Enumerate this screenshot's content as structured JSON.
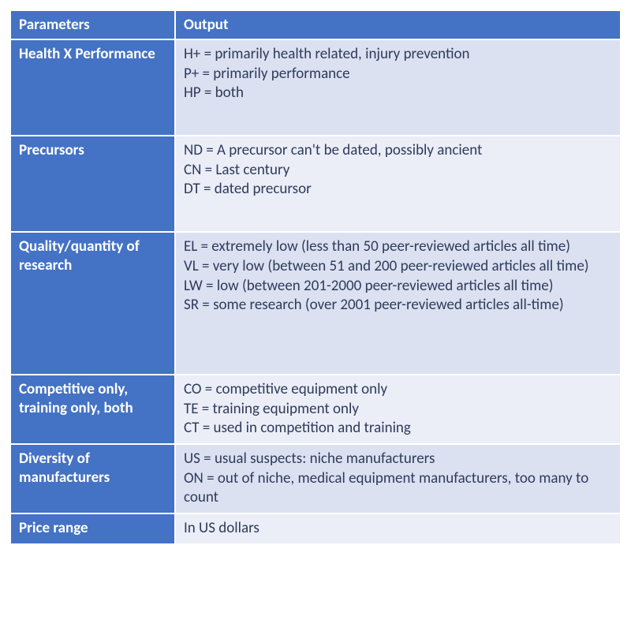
{
  "table": {
    "header_bg": "#4472c4",
    "header_fg": "#ffffff",
    "row_alt_bg_a": "#dbe1f1",
    "row_alt_bg_b": "#ebeef7",
    "body_fg": "#2f3b5c",
    "border_color": "#ffffff",
    "font_family": "Calibri, Arial, sans-serif",
    "header_fontsize": 19,
    "body_fontsize": 19,
    "columns": [
      "Parameters",
      "Output"
    ],
    "col_widths_pct": [
      27,
      73
    ],
    "rows": [
      {
        "parameter": "Health X Performance",
        "lines": [
          "H+ = primarily health related, injury prevention",
          "P+ = primarily performance",
          "HP = both"
        ],
        "extra_blank_lines": 1
      },
      {
        "parameter": "Precursors",
        "lines": [
          "ND = A precursor can't be dated, possibly ancient",
          "CN = Last century",
          "DT = dated precursor"
        ],
        "extra_blank_lines": 1
      },
      {
        "parameter": "Quality/quantity of research",
        "lines": [
          "EL = extremely low (less than 50 peer-reviewed articles all time)",
          "VL = very low (between 51 and 200 peer-reviewed articles all time)",
          "LW = low (between 201-2000 peer-reviewed articles all time)",
          "SR = some research (over 2001 peer-reviewed articles all-time)"
        ],
        "extra_blank_lines": 2
      },
      {
        "parameter": "Competitive only, training only, both",
        "lines": [
          "CO = competitive equipment only",
          "TE = training equipment only",
          "CT = used in competition and training"
        ],
        "extra_blank_lines": 0
      },
      {
        "parameter": "Diversity of manufacturers",
        "lines": [
          "US = usual suspects: niche manufacturers",
          "ON = out of niche, medical equipment manufacturers, too many to count"
        ],
        "extra_blank_lines": 0
      },
      {
        "parameter": "Price range",
        "lines": [
          "In US dollars"
        ],
        "extra_blank_lines": 0
      }
    ]
  }
}
